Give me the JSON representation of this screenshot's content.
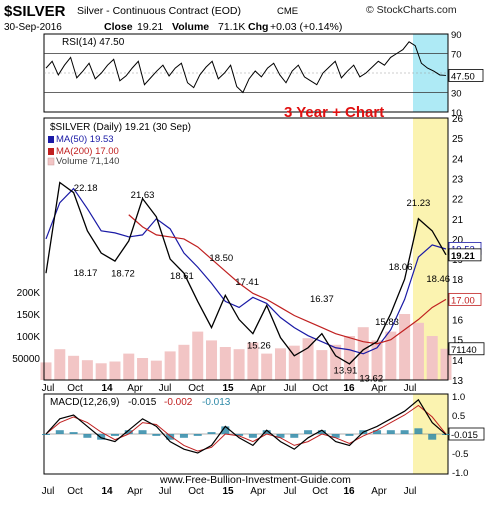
{
  "header": {
    "symbol": "$SILVER",
    "description": "Silver - Continuous Contract (EOD)",
    "exchange": "CME",
    "date": "30-Sep-2016",
    "close_label": "Close",
    "close_value": "19.21",
    "volume_label": "Volume",
    "volume_value": "71.1K",
    "chg_label": "Chg",
    "chg_value": "+0.03 (+0.14%)",
    "logo_text": "© StockCharts.com"
  },
  "overlay_text": "3 Year + Chart",
  "footer_text": "www.Free-Bullion-Investment-Guide.com",
  "colors": {
    "price": "#000000",
    "ma50": "#1a1aa6",
    "ma200": "#c02020",
    "volume": "#f2c5c5",
    "highlight_yellow": "#fbf3b0",
    "highlight_cyan": "#aeeaf5",
    "macd_hist": "#2f8aa8",
    "annotation_red": "#e01010"
  },
  "x_axis_labels": [
    "Jul",
    "Oct",
    "14",
    "Apr",
    "Jul",
    "Oct",
    "15",
    "Apr",
    "Jul",
    "Oct",
    "16",
    "Apr",
    "Jul"
  ],
  "chart_data": [
    {
      "type": "line",
      "panel": "rsi",
      "legend": "RSI(14) 47.50",
      "y_ticks": [
        "90",
        "70",
        "50",
        "30",
        "10"
      ],
      "current_value": "47.50",
      "ylim": [
        10,
        90
      ],
      "reference_lines": [
        30,
        70
      ],
      "values": [
        55,
        62,
        48,
        58,
        66,
        45,
        52,
        60,
        44,
        50,
        58,
        64,
        42,
        47,
        55,
        62,
        38,
        45,
        52,
        58,
        47,
        55,
        60,
        40,
        35,
        48,
        56,
        62,
        44,
        50,
        58,
        36,
        30,
        44,
        52,
        46,
        55,
        60,
        48,
        40,
        52,
        58,
        46,
        42,
        38,
        50,
        56,
        62,
        45,
        52,
        58,
        46,
        50,
        56,
        62,
        58,
        66,
        70,
        74,
        82,
        78,
        60,
        55,
        52,
        48,
        47.5
      ]
    },
    {
      "type": "line",
      "panel": "price",
      "title": "$SILVER (Daily) 19.21 (30 Sep)",
      "series": [
        {
          "name": "MA(50) 19.53",
          "values": [
            20.0,
            21.8,
            22.5,
            21.5,
            20.4,
            20.3,
            20.1,
            20.2,
            21.0,
            20.5,
            19.3,
            18.6,
            17.8,
            16.9,
            16.6,
            17.1,
            16.8,
            16.1,
            15.6,
            15.2,
            14.9,
            14.6,
            14.5,
            14.3,
            14.6,
            15.5,
            17.0,
            19.1,
            19.7,
            19.5
          ]
        },
        {
          "name": "MA(200) 17.00",
          "values": [
            null,
            null,
            null,
            null,
            null,
            null,
            21.2,
            20.6,
            20.2,
            20.1,
            20.0,
            19.6,
            19.0,
            18.4,
            17.8,
            17.3,
            17.0,
            16.6,
            16.2,
            15.9,
            15.6,
            15.3,
            15.1,
            14.9,
            14.8,
            15.0,
            15.5,
            16.0,
            16.6,
            17.0
          ]
        },
        {
          "name": "$SILVER",
          "values": [
            18.3,
            22.8,
            22.3,
            20.4,
            19.3,
            18.9,
            19.9,
            22.0,
            21.1,
            19.0,
            18.3,
            16.9,
            15.6,
            17.2,
            16.0,
            15.3,
            16.7,
            15.1,
            14.2,
            14.6,
            15.3,
            14.2,
            13.8,
            14.5,
            14.9,
            16.3,
            18.0,
            21.0,
            20.4,
            19.21
          ]
        }
      ],
      "volume_legend": "Volume 71,140",
      "volume_values": [
        40,
        70,
        55,
        45,
        38,
        42,
        60,
        50,
        44,
        65,
        80,
        110,
        90,
        75,
        70,
        85,
        60,
        72,
        78,
        95,
        68,
        80,
        100,
        120,
        90,
        110,
        150,
        130,
        100,
        71
      ],
      "price_labels": [
        "18.17",
        "22.18",
        "18.72",
        "21.63",
        "18.61",
        "18.50",
        "17.41",
        "15.26",
        "16.37",
        "13.91",
        "13.62",
        "15.83",
        "18.06",
        "21.23",
        "18.46",
        "19.21",
        "17.00",
        "19.53"
      ],
      "y_ticks": [
        "26",
        "25",
        "24",
        "23",
        "22",
        "21",
        "20",
        "19",
        "18",
        "17",
        "16",
        "15",
        "14",
        "13"
      ],
      "ylim": [
        13,
        26
      ],
      "volume_ticks": [
        "200K",
        "150K",
        "100K",
        "50000"
      ],
      "volume_tag": "71140"
    },
    {
      "type": "line",
      "panel": "macd",
      "legend_prefix": "MACD(12,26,9)",
      "legend_macd": "-0.015",
      "legend_signal": "-0.002",
      "legend_hist": "-0.013",
      "y_ticks": [
        "1.0",
        "0.5",
        "0.0",
        "-0.5",
        "-1.0"
      ],
      "current_value": "-0.015",
      "ylim": [
        -1.0,
        1.0
      ],
      "macd": [
        0.0,
        0.4,
        0.5,
        0.2,
        -0.1,
        -0.2,
        0.1,
        0.4,
        0.2,
        -0.2,
        -0.4,
        -0.5,
        -0.3,
        0.2,
        -0.1,
        -0.3,
        0.1,
        -0.2,
        -0.4,
        -0.1,
        0.1,
        -0.2,
        -0.3,
        0.05,
        0.2,
        0.4,
        0.6,
        0.9,
        0.3,
        -0.015
      ],
      "signal": [
        0.0,
        0.3,
        0.45,
        0.3,
        0.05,
        -0.15,
        0.0,
        0.3,
        0.25,
        -0.05,
        -0.3,
        -0.45,
        -0.35,
        0.0,
        -0.05,
        -0.2,
        0.0,
        -0.1,
        -0.3,
        -0.2,
        0.0,
        -0.1,
        -0.25,
        -0.05,
        0.1,
        0.3,
        0.5,
        0.75,
        0.45,
        -0.002
      ]
    }
  ]
}
